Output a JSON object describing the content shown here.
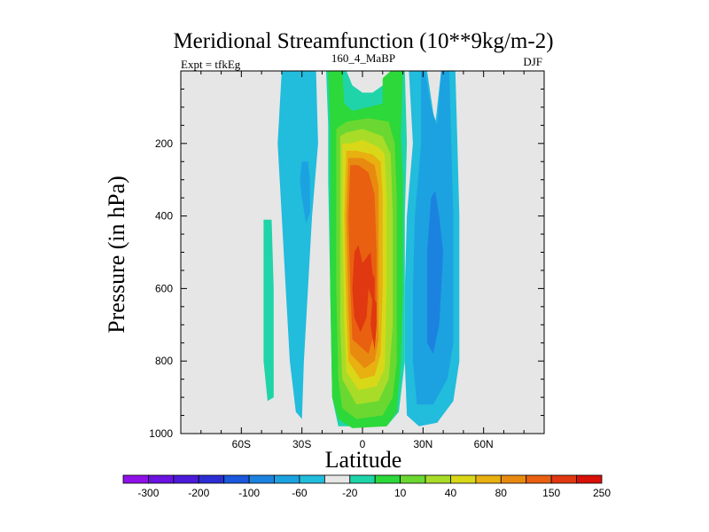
{
  "chart_data": {
    "type": "contour",
    "title": "Meridional Streamfunction (10**9kg/m-2)",
    "left_string": "Expt = tfkEg",
    "center_string": "160_4_MaBP",
    "right_string": "DJF",
    "xlabel": "Latitude",
    "ylabel": "Pressure (in hPa)",
    "xlim": [
      -90,
      90
    ],
    "ylim": [
      1000,
      0
    ],
    "xticks": [
      -60,
      -30,
      0,
      30,
      60
    ],
    "xtick_labels": [
      "60S",
      "30S",
      "0",
      "30N",
      "60N"
    ],
    "yticks": [
      200,
      400,
      600,
      800,
      1000
    ],
    "ytick_labels": [
      "200",
      "400",
      "600",
      "800",
      "1000"
    ],
    "background_color": "#e6e6e6",
    "colorbar": {
      "colors": [
        "#9010e8",
        "#6a12e0",
        "#4c1ad8",
        "#2c2ed4",
        "#1a58dc",
        "#1c82e0",
        "#1ca2e0",
        "#22bcdc",
        "#e6e6e6",
        "#1fd4a8",
        "#2cd83a",
        "#6ad830",
        "#a8dc28",
        "#d8d818",
        "#e8b010",
        "#e88a10",
        "#e86010",
        "#e03810",
        "#d81008"
      ],
      "labels": [
        "-300",
        "-200",
        "-100",
        "-60",
        "-20",
        "10",
        "40",
        "80",
        "150",
        "250"
      ]
    },
    "contour_regions": [
      {
        "level": -20,
        "color": "#22bcdc",
        "pts": [
          [
            -40,
            0
          ],
          [
            -42,
            200
          ],
          [
            -40,
            400
          ],
          [
            -38,
            600
          ],
          [
            -36,
            800
          ],
          [
            -33,
            940
          ],
          [
            -30,
            960
          ],
          [
            -29,
            800
          ],
          [
            -27,
            600
          ],
          [
            -25,
            400
          ],
          [
            -22,
            200
          ],
          [
            -23,
            0
          ]
        ]
      },
      {
        "level": -20,
        "color": "#22bcdc",
        "pts": [
          [
            23,
            0
          ],
          [
            25,
            200
          ],
          [
            22,
            400
          ],
          [
            21,
            600
          ],
          [
            21,
            800
          ],
          [
            22,
            950
          ],
          [
            28,
            980
          ],
          [
            37,
            970
          ],
          [
            45,
            910
          ],
          [
            48,
            800
          ],
          [
            48,
            400
          ],
          [
            47,
            200
          ],
          [
            46,
            0
          ],
          [
            39,
            0
          ],
          [
            36,
            150
          ],
          [
            32,
            0
          ]
        ]
      },
      {
        "level": -60,
        "color": "#1ca2e0",
        "pts": [
          [
            -30,
            250
          ],
          [
            -31,
            300
          ],
          [
            -30,
            350
          ],
          [
            -28,
            420
          ],
          [
            -26,
            390
          ],
          [
            -26,
            300
          ],
          [
            -27,
            250
          ]
        ]
      },
      {
        "level": -60,
        "color": "#1ca2e0",
        "pts": [
          [
            29,
            0
          ],
          [
            29,
            200
          ],
          [
            26,
            400
          ],
          [
            25,
            600
          ],
          [
            25,
            800
          ],
          [
            27,
            920
          ],
          [
            35,
            920
          ],
          [
            42,
            850
          ],
          [
            45,
            750
          ],
          [
            45,
            400
          ],
          [
            44,
            200
          ],
          [
            43,
            0
          ],
          [
            39,
            0
          ],
          [
            37,
            150
          ],
          [
            34,
            100
          ],
          [
            31,
            0
          ]
        ]
      },
      {
        "level": -100,
        "color": "#1c82e0",
        "pts": [
          [
            34,
            350
          ],
          [
            32,
            500
          ],
          [
            32,
            750
          ],
          [
            35,
            780
          ],
          [
            38,
            700
          ],
          [
            40,
            500
          ],
          [
            38,
            400
          ],
          [
            36,
            330
          ]
        ]
      },
      {
        "level": 10,
        "color": "#1fd4a8",
        "pts": [
          [
            -49,
            410
          ],
          [
            -45,
            410
          ],
          [
            -44,
            600
          ],
          [
            -44,
            900
          ],
          [
            -47,
            910
          ],
          [
            -49,
            800
          ],
          [
            -49,
            600
          ]
        ]
      },
      {
        "level": 10,
        "color": "#1fd4a8",
        "pts": [
          [
            -18,
            0
          ],
          [
            -17,
            150
          ],
          [
            -17,
            300
          ],
          [
            -16,
            600
          ],
          [
            -15,
            900
          ],
          [
            -12,
            980
          ],
          [
            12,
            980
          ],
          [
            18,
            940
          ],
          [
            21,
            800
          ],
          [
            21,
            600
          ],
          [
            21,
            400
          ],
          [
            22,
            200
          ],
          [
            21,
            0
          ],
          [
            15,
            0
          ],
          [
            10,
            40
          ],
          [
            5,
            60
          ],
          [
            0,
            60
          ],
          [
            -5,
            40
          ],
          [
            -8,
            0
          ]
        ]
      },
      {
        "level": 40,
        "color": "#2cd83a",
        "pts": [
          [
            -17,
            0
          ],
          [
            -16,
            160
          ],
          [
            -16,
            350
          ],
          [
            -16,
            600
          ],
          [
            -15,
            900
          ],
          [
            -12,
            960
          ],
          [
            -5,
            985
          ],
          [
            12,
            980
          ],
          [
            17,
            940
          ],
          [
            19,
            800
          ],
          [
            20,
            600
          ],
          [
            20,
            400
          ],
          [
            20,
            300
          ],
          [
            19,
            180
          ],
          [
            20,
            0
          ],
          [
            14,
            0
          ],
          [
            10,
            20
          ],
          [
            10,
            90
          ],
          [
            3,
            100
          ],
          [
            -5,
            110
          ],
          [
            -9,
            90
          ],
          [
            -10,
            0
          ]
        ]
      },
      {
        "level": 80,
        "color": "#6ad830",
        "pts": [
          [
            -13,
            160
          ],
          [
            -13,
            400
          ],
          [
            -13,
            600
          ],
          [
            -12,
            850
          ],
          [
            -10,
            930
          ],
          [
            -3,
            960
          ],
          [
            10,
            950
          ],
          [
            15,
            900
          ],
          [
            17,
            800
          ],
          [
            17,
            550
          ],
          [
            17,
            350
          ],
          [
            16,
            200
          ],
          [
            13,
            140
          ],
          [
            3,
            130
          ],
          [
            -8,
            140
          ]
        ]
      },
      {
        "level": 150,
        "color": "#a8dc28",
        "pts": [
          [
            -11,
            180
          ],
          [
            -11,
            400
          ],
          [
            -11,
            700
          ],
          [
            -10,
            850
          ],
          [
            -3,
            920
          ],
          [
            8,
            910
          ],
          [
            13,
            850
          ],
          [
            15,
            700
          ],
          [
            15,
            400
          ],
          [
            14,
            230
          ],
          [
            10,
            180
          ],
          [
            0,
            160
          ],
          [
            -8,
            170
          ]
        ]
      },
      {
        "level": 200,
        "color": "#d8d818",
        "pts": [
          [
            -10,
            200
          ],
          [
            -10,
            400
          ],
          [
            -9,
            700
          ],
          [
            -8,
            830
          ],
          [
            -2,
            880
          ],
          [
            7,
            870
          ],
          [
            11,
            820
          ],
          [
            12,
            600
          ],
          [
            12,
            350
          ],
          [
            11,
            230
          ],
          [
            8,
            210
          ],
          [
            0,
            190
          ],
          [
            -6,
            200
          ]
        ]
      },
      {
        "level": 250,
        "color": "#e8b010",
        "pts": [
          [
            -8,
            220
          ],
          [
            -9,
            400
          ],
          [
            -8,
            650
          ],
          [
            -7,
            800
          ],
          [
            -1,
            850
          ],
          [
            6,
            840
          ],
          [
            9,
            780
          ],
          [
            10,
            600
          ],
          [
            10,
            350
          ],
          [
            9,
            250
          ],
          [
            5,
            230
          ],
          [
            -3,
            220
          ]
        ]
      },
      {
        "level": 280,
        "color": "#e88a10",
        "pts": [
          [
            -7,
            240
          ],
          [
            -8,
            400
          ],
          [
            -7,
            650
          ],
          [
            -6,
            780
          ],
          [
            1,
            820
          ],
          [
            6,
            800
          ],
          [
            8,
            740
          ],
          [
            8,
            500
          ],
          [
            8,
            320
          ],
          [
            6,
            260
          ],
          [
            0,
            240
          ]
        ]
      },
      {
        "level": 300,
        "color": "#e86010",
        "pts": [
          [
            -6,
            260
          ],
          [
            -7,
            400
          ],
          [
            -6,
            600
          ],
          [
            -5,
            740
          ],
          [
            3,
            780
          ],
          [
            7,
            700
          ],
          [
            7,
            500
          ],
          [
            6,
            340
          ],
          [
            3,
            280
          ],
          [
            -2,
            260
          ]
        ]
      },
      {
        "level": 320,
        "color": "#e03810",
        "pts": [
          [
            -4,
            500
          ],
          [
            -5,
            600
          ],
          [
            -4,
            680
          ],
          [
            -1,
            720
          ],
          [
            2,
            680
          ],
          [
            3,
            600
          ],
          [
            6,
            650
          ],
          [
            6,
            570
          ],
          [
            5,
            560
          ],
          [
            4,
            500
          ],
          [
            0,
            530
          ],
          [
            -2,
            480
          ]
        ]
      },
      {
        "level": 320,
        "color": "#e03810",
        "pts": [
          [
            5,
            620
          ],
          [
            4,
            700
          ],
          [
            6,
            770
          ],
          [
            7,
            700
          ],
          [
            7,
            640
          ]
        ]
      }
    ]
  }
}
